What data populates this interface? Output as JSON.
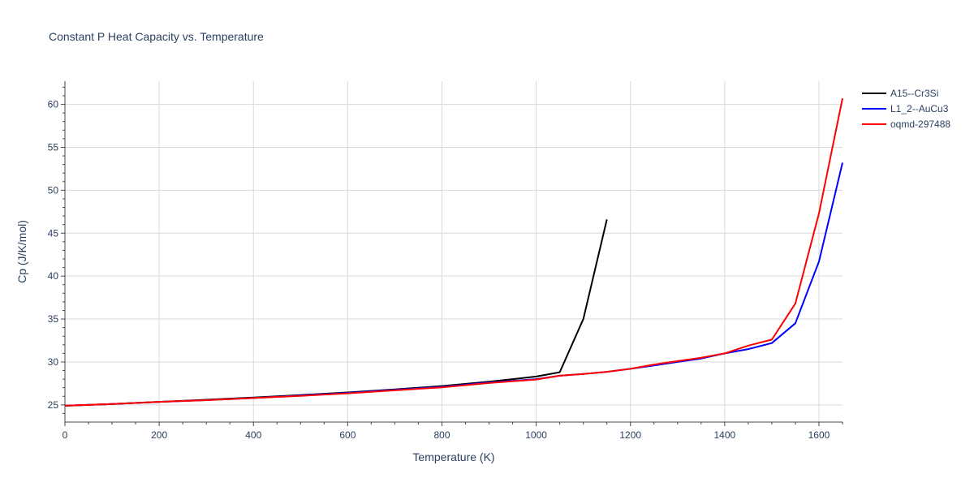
{
  "chart_data": {
    "type": "line",
    "title": "Constant P Heat Capacity vs. Temperature",
    "xlabel": "Temperature (K)",
    "ylabel": "Cp (J/K/mol)",
    "xlim": [
      0,
      1650
    ],
    "ylim": [
      23,
      62.7
    ],
    "xticks": [
      0,
      200,
      400,
      600,
      800,
      1000,
      1200,
      1400,
      1600
    ],
    "yticks": [
      25,
      30,
      35,
      40,
      45,
      50,
      55,
      60
    ],
    "grid": true,
    "legend_position": "top-right",
    "series": [
      {
        "name": "A15--Cr3Si",
        "color": "#000000",
        "x": [
          0,
          100,
          200,
          300,
          400,
          500,
          600,
          700,
          800,
          900,
          1000,
          1050,
          1100,
          1150
        ],
        "y": [
          24.9,
          25.1,
          25.35,
          25.6,
          25.85,
          26.15,
          26.45,
          26.8,
          27.2,
          27.7,
          28.3,
          28.8,
          35.0,
          46.6
        ]
      },
      {
        "name": "L1_2--AuCu3",
        "color": "#0000ff",
        "x": [
          0,
          100,
          200,
          300,
          400,
          500,
          600,
          700,
          800,
          900,
          1000,
          1050,
          1100,
          1150,
          1200,
          1250,
          1300,
          1350,
          1400,
          1450,
          1500,
          1550,
          1600,
          1650
        ],
        "y": [
          24.9,
          25.1,
          25.35,
          25.55,
          25.8,
          26.1,
          26.4,
          26.75,
          27.1,
          27.6,
          28.0,
          28.4,
          28.6,
          28.85,
          29.2,
          29.6,
          30.0,
          30.4,
          31.0,
          31.5,
          32.2,
          34.5,
          41.7,
          53.2
        ]
      },
      {
        "name": "oqmd-297488",
        "color": "#ff0000",
        "x": [
          0,
          100,
          200,
          300,
          400,
          500,
          600,
          700,
          800,
          900,
          1000,
          1050,
          1100,
          1150,
          1200,
          1250,
          1300,
          1350,
          1400,
          1450,
          1500,
          1550,
          1600,
          1650
        ],
        "y": [
          24.9,
          25.1,
          25.35,
          25.55,
          25.8,
          26.05,
          26.35,
          26.7,
          27.05,
          27.55,
          27.95,
          28.4,
          28.6,
          28.85,
          29.2,
          29.7,
          30.1,
          30.5,
          31.0,
          31.9,
          32.6,
          36.8,
          47.3,
          60.7
        ]
      }
    ]
  }
}
